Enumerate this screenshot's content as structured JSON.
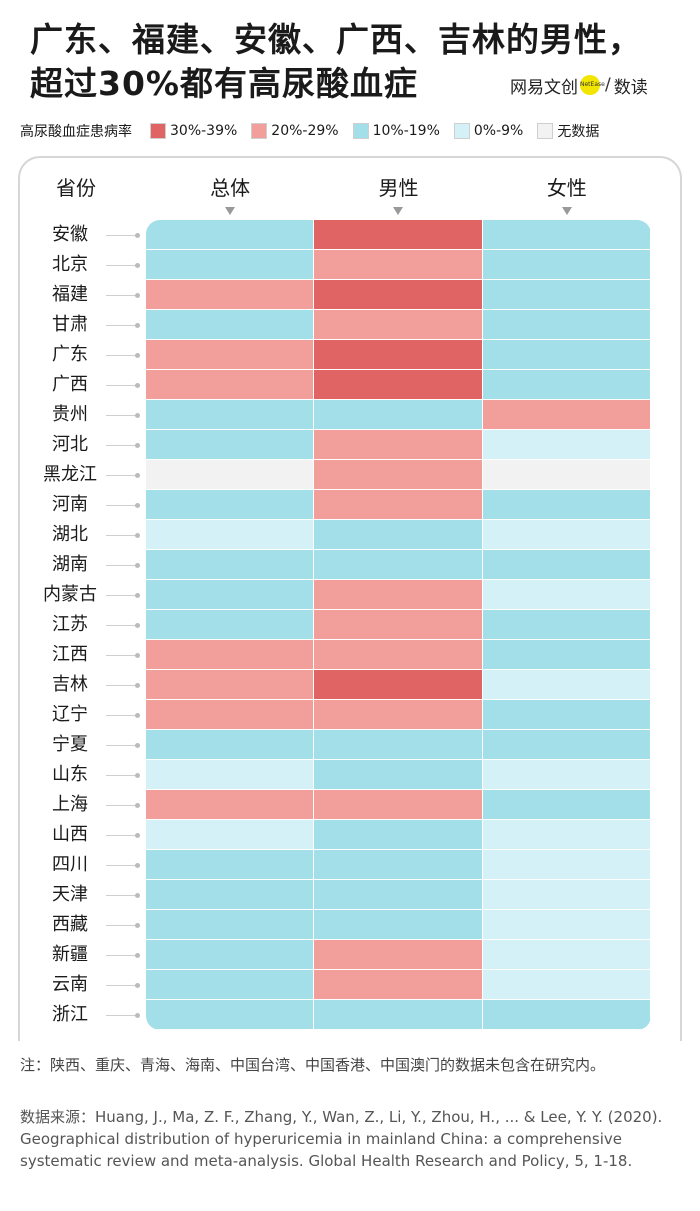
{
  "header": {
    "title_line1": "广东、福建、安徽、广西、吉林的男性，",
    "title_line2": "超过30%都有高尿酸血症",
    "brand_name": "网易文创",
    "brand_badge": "NetEase",
    "brand_sep": "/",
    "brand_sub": "数读"
  },
  "legend": {
    "title": "高尿酸血症患病率",
    "items": [
      {
        "key": "c30",
        "label": "30%-39%",
        "color": "#e06464"
      },
      {
        "key": "c20",
        "label": "20%-29%",
        "color": "#f29e9b"
      },
      {
        "key": "c10",
        "label": "10%-19%",
        "color": "#a2dfe8"
      },
      {
        "key": "c0",
        "label": "0%-9%",
        "color": "#d4f1f7"
      },
      {
        "key": "na",
        "label": "无数据",
        "color": "#f2f2f2"
      }
    ]
  },
  "chart_data": {
    "type": "heatmap",
    "row_header": "省份",
    "columns": [
      "总体",
      "男性",
      "女性"
    ],
    "category_scale": [
      "30%-39%",
      "20%-29%",
      "10%-19%",
      "0%-9%",
      "无数据"
    ],
    "rows": [
      {
        "province": "安徽",
        "values": [
          "10%-19%",
          "30%-39%",
          "10%-19%"
        ]
      },
      {
        "province": "北京",
        "values": [
          "10%-19%",
          "20%-29%",
          "10%-19%"
        ]
      },
      {
        "province": "福建",
        "values": [
          "20%-29%",
          "30%-39%",
          "10%-19%"
        ]
      },
      {
        "province": "甘肃",
        "values": [
          "10%-19%",
          "20%-29%",
          "10%-19%"
        ]
      },
      {
        "province": "广东",
        "values": [
          "20%-29%",
          "30%-39%",
          "10%-19%"
        ]
      },
      {
        "province": "广西",
        "values": [
          "20%-29%",
          "30%-39%",
          "10%-19%"
        ]
      },
      {
        "province": "贵州",
        "values": [
          "10%-19%",
          "10%-19%",
          "20%-29%"
        ]
      },
      {
        "province": "河北",
        "values": [
          "10%-19%",
          "20%-29%",
          "0%-9%"
        ]
      },
      {
        "province": "黑龙江",
        "values": [
          "无数据",
          "20%-29%",
          "无数据"
        ]
      },
      {
        "province": "河南",
        "values": [
          "10%-19%",
          "20%-29%",
          "10%-19%"
        ]
      },
      {
        "province": "湖北",
        "values": [
          "0%-9%",
          "10%-19%",
          "0%-9%"
        ]
      },
      {
        "province": "湖南",
        "values": [
          "10%-19%",
          "10%-19%",
          "10%-19%"
        ]
      },
      {
        "province": "内蒙古",
        "values": [
          "10%-19%",
          "20%-29%",
          "0%-9%"
        ]
      },
      {
        "province": "江苏",
        "values": [
          "10%-19%",
          "20%-29%",
          "10%-19%"
        ]
      },
      {
        "province": "江西",
        "values": [
          "20%-29%",
          "20%-29%",
          "10%-19%"
        ]
      },
      {
        "province": "吉林",
        "values": [
          "20%-29%",
          "30%-39%",
          "0%-9%"
        ]
      },
      {
        "province": "辽宁",
        "values": [
          "20%-29%",
          "20%-29%",
          "10%-19%"
        ]
      },
      {
        "province": "宁夏",
        "values": [
          "10%-19%",
          "10%-19%",
          "10%-19%"
        ]
      },
      {
        "province": "山东",
        "values": [
          "0%-9%",
          "10%-19%",
          "0%-9%"
        ]
      },
      {
        "province": "上海",
        "values": [
          "20%-29%",
          "20%-29%",
          "10%-19%"
        ]
      },
      {
        "province": "山西",
        "values": [
          "0%-9%",
          "10%-19%",
          "0%-9%"
        ]
      },
      {
        "province": "四川",
        "values": [
          "10%-19%",
          "10%-19%",
          "0%-9%"
        ]
      },
      {
        "province": "天津",
        "values": [
          "10%-19%",
          "10%-19%",
          "0%-9%"
        ]
      },
      {
        "province": "西藏",
        "values": [
          "10%-19%",
          "10%-19%",
          "0%-9%"
        ]
      },
      {
        "province": "新疆",
        "values": [
          "10%-19%",
          "20%-29%",
          "0%-9%"
        ]
      },
      {
        "province": "云南",
        "values": [
          "10%-19%",
          "20%-29%",
          "0%-9%"
        ]
      },
      {
        "province": "浙江",
        "values": [
          "10%-19%",
          "10%-19%",
          "10%-19%"
        ]
      }
    ]
  },
  "footer": {
    "note": "注：陕西、重庆、青海、海南、中国台湾、中国香港、中国澳门的数据未包含在研究内。",
    "source": "数据来源：Huang, J., Ma, Z. F., Zhang, Y., Wan, Z., Li, Y., Zhou, H., ... & Lee, Y. Y. (2020). Geographical distribution of hyperuricemia in mainland China: a comprehensive systematic review and meta-analysis. Global Health Research and Policy, 5, 1-18."
  }
}
